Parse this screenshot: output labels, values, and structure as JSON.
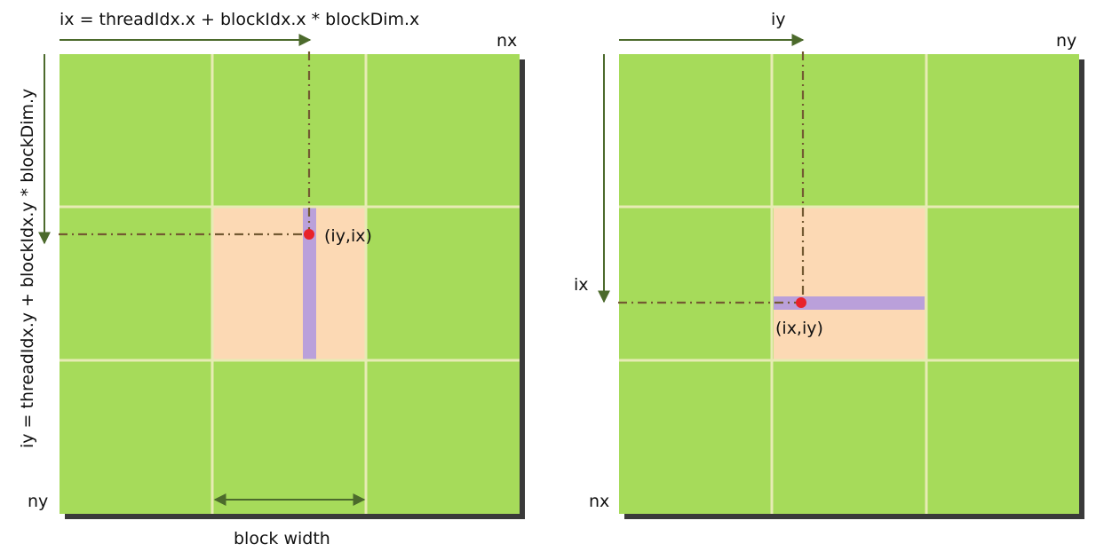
{
  "colors": {
    "block": "#a6db5a",
    "grid_line": "#e7ebb4",
    "highlight_block": "#fcd9b4",
    "thread_strip": "#baa0da",
    "point": "#e8222a",
    "arrow": "#4c6a2c",
    "guide": "#735a32",
    "shadow": "#3a3a3a"
  },
  "left_panel": {
    "top_formula": "ix = threadIdx.x + blockIdx.x * blockDim.x",
    "side_formula": "iy = threadIdx.y + blockIdx.y * blockDim.y",
    "corner_top_right": "nx",
    "corner_bottom_left": "ny",
    "point_label": "(iy,ix)",
    "block_width_label": "block width"
  },
  "right_panel": {
    "top_label": "iy",
    "side_label": "ix",
    "corner_top_right": "ny",
    "corner_bottom_left": "nx",
    "point_label": "(ix,iy)"
  }
}
